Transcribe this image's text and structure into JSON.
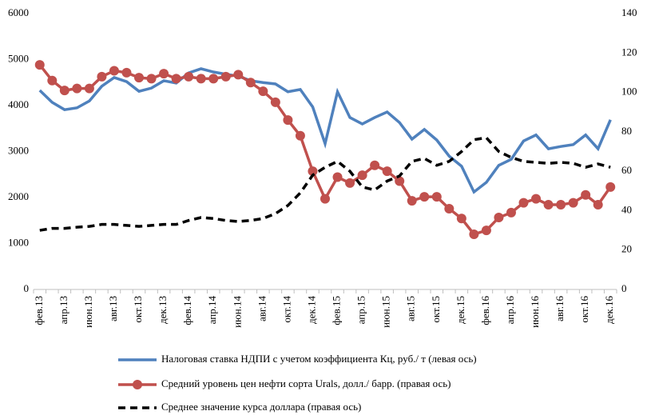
{
  "chart_data": {
    "type": "line",
    "categories": [
      "фев.13",
      null,
      "апр.13",
      null,
      "июн.13",
      null,
      "авг.13",
      null,
      "окт.13",
      null,
      "дек.13",
      null,
      "фев.14",
      null,
      "апр.14",
      null,
      "июн.14",
      null,
      "авг.14",
      null,
      "окт.14",
      null,
      "дек.14",
      null,
      "фев.15",
      null,
      "апр.15",
      null,
      "июн.15",
      null,
      "авг.15",
      null,
      "окт.15",
      null,
      "дек.15",
      null,
      "фев.16",
      null,
      "апр.16",
      null,
      "июн.16",
      null,
      "авг.16",
      null,
      "окт.16",
      null,
      "дек.16"
    ],
    "ylim": [
      0,
      6000
    ],
    "yticks": [
      0,
      1000,
      2000,
      3000,
      4000,
      5000,
      6000
    ],
    "y2lim": [
      0,
      140
    ],
    "y2ticks": [
      0,
      20,
      40,
      60,
      80,
      100,
      120,
      140
    ],
    "legend": "bottom",
    "series": [
      {
        "name": "Налоговая ставка НДПИ с учетом коэффициента Кц, руб./ т (левая ось)",
        "color": "#4f81bd",
        "style": "solid",
        "marker": false,
        "values": [
          4330,
          4070,
          3910,
          3950,
          4100,
          4420,
          4610,
          4520,
          4310,
          4380,
          4540,
          4490,
          4710,
          4800,
          4730,
          4680,
          4640,
          4540,
          4500,
          4470,
          4300,
          4350,
          3970,
          3170,
          4300,
          3740,
          3600,
          3740,
          3860,
          3630,
          3270,
          3480,
          3250,
          2900,
          2680,
          2120,
          2330,
          2700,
          2830,
          3230,
          3360,
          3060,
          3110,
          3150,
          3360,
          3060,
          3690
        ]
      },
      {
        "name": "Средний уровень цен нефти сорта Urals, долл./ барр. (правая ось)",
        "color": "#c0504d",
        "style": "solid",
        "marker": true,
        "axis": "y2",
        "values": [
          114,
          106,
          101,
          102,
          102,
          108,
          111,
          110,
          107.5,
          107,
          109.5,
          107,
          108,
          107,
          107,
          108,
          109,
          105,
          100.6,
          95,
          86,
          78,
          60,
          46,
          57,
          54,
          58,
          63,
          60,
          55,
          45,
          47,
          47,
          41,
          36,
          28,
          30,
          36.5,
          39,
          44,
          46,
          43,
          43,
          44,
          48,
          43,
          52
        ]
      },
      {
        "name": "Среднее значение курса доллара  (правая ось)",
        "color": "#000000",
        "style": "dashed",
        "marker": false,
        "axis": "y2",
        "values": [
          30,
          31,
          31,
          31.6,
          32,
          33,
          33,
          32.5,
          32,
          32.5,
          33,
          33,
          35,
          36.5,
          36,
          35,
          34.5,
          35,
          36,
          38.5,
          42.6,
          49,
          58,
          62,
          65,
          60,
          52,
          50.5,
          55,
          57.6,
          65,
          66.5,
          63,
          65,
          70,
          76,
          77,
          70,
          67,
          65,
          64.5,
          64,
          64.5,
          64,
          62,
          63.7,
          62
        ]
      }
    ]
  }
}
